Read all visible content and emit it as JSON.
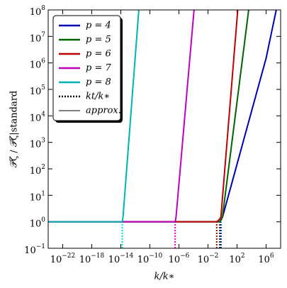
{
  "chart_data": {
    "type": "line",
    "xlabel": "k/k∗",
    "ylabel": "𝒫ζ / 𝒫ζ|standard",
    "xscale": "log",
    "yscale": "log",
    "xlim": [
      1e-24,
      100000000.0
    ],
    "ylim": [
      0.1,
      100000000.0
    ],
    "xticks": [
      {
        "value": 1e-22,
        "label": "10",
        "exponent": "−22"
      },
      {
        "value": 1e-18,
        "label": "10",
        "exponent": "−18"
      },
      {
        "value": 1e-14,
        "label": "10",
        "exponent": "−14"
      },
      {
        "value": 1e-10,
        "label": "10",
        "exponent": "−10"
      },
      {
        "value": 1e-06,
        "label": "10",
        "exponent": "−6"
      },
      {
        "value": 0.01,
        "label": "10",
        "exponent": "−2"
      },
      {
        "value": 100,
        "label": "10",
        "exponent": "2"
      },
      {
        "value": 1000000,
        "label": "10",
        "exponent": "6"
      }
    ],
    "yticks": [
      {
        "value": 0.1,
        "label": "10",
        "exponent": "−1"
      },
      {
        "value": 1,
        "label": "10",
        "exponent": "0"
      },
      {
        "value": 10,
        "label": "10",
        "exponent": "1"
      },
      {
        "value": 100,
        "label": "10",
        "exponent": "2"
      },
      {
        "value": 1000,
        "label": "10",
        "exponent": "3"
      },
      {
        "value": 10000,
        "label": "10",
        "exponent": "4"
      },
      {
        "value": 100000,
        "label": "10",
        "exponent": "5"
      },
      {
        "value": 1000000,
        "label": "10",
        "exponent": "6"
      },
      {
        "value": 10000000,
        "label": "10",
        "exponent": "7"
      },
      {
        "value": 100000000,
        "label": "10",
        "exponent": "8"
      }
    ],
    "series": [
      {
        "name": "p = 4",
        "color": "#0000b0",
        "x": [
          1e-24,
          0.4,
          1,
          10,
          1000000,
          25000000
        ],
        "values": [
          1,
          1,
          1.5,
          15,
          1500000,
          100000000
        ]
      },
      {
        "name": "p = 5",
        "color": "#006400",
        "x": [
          1e-24,
          0.4,
          0.7,
          1,
          4000
        ],
        "values": [
          1,
          1,
          1.2,
          1.6,
          100000000
        ]
      },
      {
        "name": "p = 6",
        "color": "#c00000",
        "x": [
          1e-24,
          0.15,
          0.3,
          0.6,
          125
        ],
        "values": [
          1,
          1,
          1.15,
          1.5,
          100000000
        ]
      },
      {
        "name": "p = 7",
        "color": "#c000c0",
        "x": [
          1e-24,
          3e-07,
          4e-07,
          0.00012
        ],
        "values": [
          1,
          1,
          1.5,
          100000000
        ]
      },
      {
        "name": "p = 8",
        "color": "#00b4b4",
        "x": [
          1e-24,
          1.6e-14,
          2e-14,
          3e-12
        ],
        "values": [
          1,
          1,
          1.5,
          100000000
        ]
      }
    ],
    "kt_lines": [
      {
        "x": 1.6e-14,
        "color": "#00e0e0"
      },
      {
        "x": 3e-07,
        "color": "#e000e0"
      },
      {
        "x": 0.16,
        "color": "#c00000"
      },
      {
        "x": 0.4,
        "color": "#006400"
      },
      {
        "x": 0.6,
        "color": "#0000b0"
      }
    ],
    "legend_extra": [
      {
        "label": "kt/k∗",
        "style": "dotted"
      },
      {
        "label": "approx.",
        "style": "thin"
      }
    ],
    "legend": "upper left"
  }
}
